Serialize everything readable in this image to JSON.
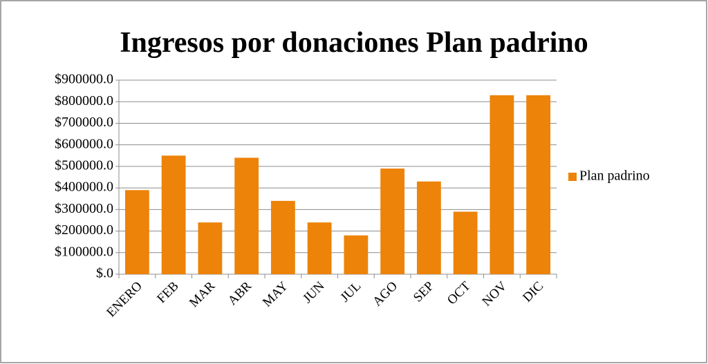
{
  "chart_data": {
    "type": "bar",
    "title": "Ingresos por donaciones Plan padrino",
    "categories": [
      "ENERO",
      "FEB",
      "MAR",
      "ABR",
      "MAY",
      "JUN",
      "JUL",
      "AGO",
      "SEP",
      "OCT",
      "NOV",
      "DIC"
    ],
    "series": [
      {
        "name": "Plan padrino",
        "color": "#ed8309",
        "values": [
          390000,
          550000,
          240000,
          540000,
          340000,
          240000,
          180000,
          490000,
          430000,
          290000,
          830000,
          830000
        ]
      }
    ],
    "ylim": [
      0,
      900000
    ],
    "yticks": [
      {
        "value": 0,
        "label": "$.0"
      },
      {
        "value": 100000,
        "label": "$100000.0"
      },
      {
        "value": 200000,
        "label": "$200000.0"
      },
      {
        "value": 300000,
        "label": "$300000.0"
      },
      {
        "value": 400000,
        "label": "$400000.0"
      },
      {
        "value": 500000,
        "label": "$500000.0"
      },
      {
        "value": 600000,
        "label": "$600000.0"
      },
      {
        "value": 700000,
        "label": "$700000.0"
      },
      {
        "value": 800000,
        "label": "$800000.0"
      },
      {
        "value": 900000,
        "label": "$900000.0"
      }
    ],
    "grid": true,
    "legend": "right"
  }
}
